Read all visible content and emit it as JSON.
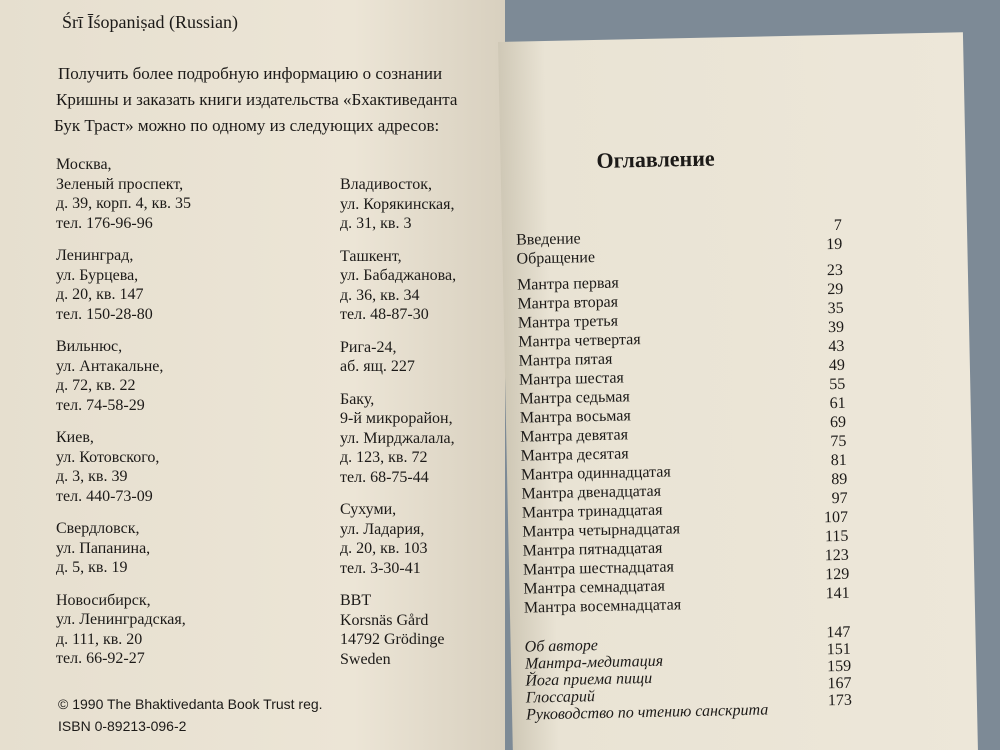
{
  "left_page": {
    "header": "Śrī Īśopaniṣad (Russian)",
    "intro": [
      "Получить более подробную информацию о сознании",
      "Кришны и заказать книги издательства «Бхактиведанта",
      "Бук Траст» можно по одному из следующих адресов:"
    ],
    "addresses_left": [
      [
        "Москва,",
        "Зеленый проспект,",
        "д. 39, корп. 4, кв. 35",
        "тел. 176-96-96"
      ],
      [
        "Ленинград,",
        "ул. Бурцева,",
        "д. 20, кв. 147",
        "тел. 150-28-80"
      ],
      [
        "Вильнюс,",
        "ул. Антакальне,",
        "д. 72, кв. 22",
        "тел. 74-58-29"
      ],
      [
        "Киев,",
        "ул. Котовского,",
        "д. 3, кв. 39",
        "тел. 440-73-09"
      ],
      [
        "Свердловск,",
        "ул. Папанина,",
        "д. 5, кв. 19"
      ],
      [
        "Новосибирск,",
        "ул. Ленинградская,",
        "д. 111, кв. 20",
        "тел. 66-92-27"
      ]
    ],
    "addresses_right": [
      [
        "Владивосток,",
        "ул. Корякинская,",
        "д. 31, кв. 3"
      ],
      [
        "Ташкент,",
        "ул. Бабаджанова,",
        "д. 36, кв. 34",
        "тел. 48-87-30"
      ],
      [
        "Рига-24,",
        "аб. ящ. 227"
      ],
      [
        "Баку,",
        "9-й микрорайон,",
        "ул. Мирджалала,",
        "д. 123, кв. 72",
        "тел. 68-75-44"
      ],
      [
        "Сухуми,",
        "ул. Ладария,",
        "д. 20, кв. 103",
        "тел. 3-30-41"
      ],
      [
        "BBT",
        "Korsnäs Gård",
        "14792 Grödinge",
        "Sweden"
      ]
    ],
    "copyright": [
      "© 1990 The Bhaktivedanta Book Trust reg.",
      "ISBN 0-89213-096-2"
    ]
  },
  "right_page": {
    "title": "Оглавление",
    "toc": [
      [
        {
          "title": "Введение",
          "page": 7
        },
        {
          "title": "Обращение",
          "page": 19
        }
      ],
      [
        {
          "title": "Мантра первая",
          "page": 23
        },
        {
          "title": "Мантра вторая",
          "page": 29
        },
        {
          "title": "Мантра третья",
          "page": 35
        },
        {
          "title": "Мантра четвертая",
          "page": 39
        },
        {
          "title": "Мантра пятая",
          "page": 43
        },
        {
          "title": "Мантра шестая",
          "page": 49
        },
        {
          "title": "Мантра седьмая",
          "page": 55
        },
        {
          "title": "Мантра восьмая",
          "page": 61
        },
        {
          "title": "Мантра девятая",
          "page": 69
        },
        {
          "title": "Мантра десятая",
          "page": 75
        },
        {
          "title": "Мантра одиннадцатая",
          "page": 81
        },
        {
          "title": "Мантра двенадцатая",
          "page": 89
        },
        {
          "title": "Мантра тринадцатая",
          "page": 97
        },
        {
          "title": "Мантра четырнадцатая",
          "page": 107
        },
        {
          "title": "Мантра пятнадцатая",
          "page": 115
        },
        {
          "title": "Мантра шестнадцатая",
          "page": 123
        },
        {
          "title": "Мантра семнадцатая",
          "page": 129
        },
        {
          "title": "Мантра восемнадцатая",
          "page": 141
        }
      ],
      [
        {
          "title": "Об авторе",
          "page": 147
        },
        {
          "title": "Мантра-медитация",
          "page": 151
        },
        {
          "title": "Йога приема пищи",
          "page": 159
        },
        {
          "title": "Глоссарий",
          "page": 167
        },
        {
          "title": "Руководство по чтению санскрита",
          "page": 173
        }
      ]
    ]
  }
}
